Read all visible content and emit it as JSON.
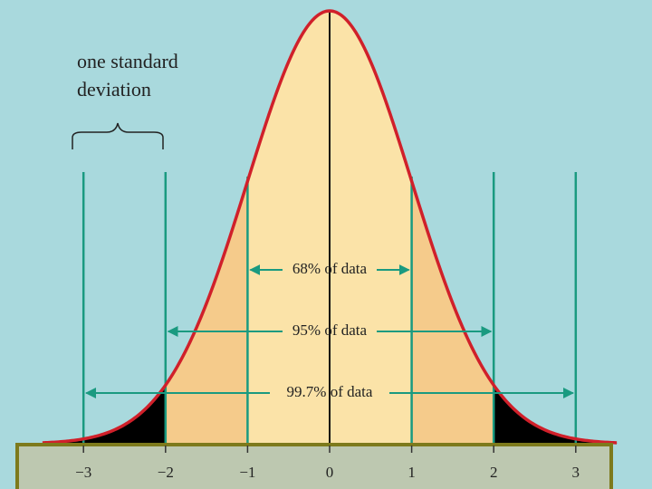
{
  "annotation": {
    "line1": "one standard",
    "line2": "deviation"
  },
  "ranges": [
    "68% of data",
    "95% of data",
    "99.7% of data"
  ],
  "axis": {
    "ticks": [
      "−3",
      "−2",
      "−1",
      "0",
      "1",
      "2",
      "3"
    ]
  }
}
